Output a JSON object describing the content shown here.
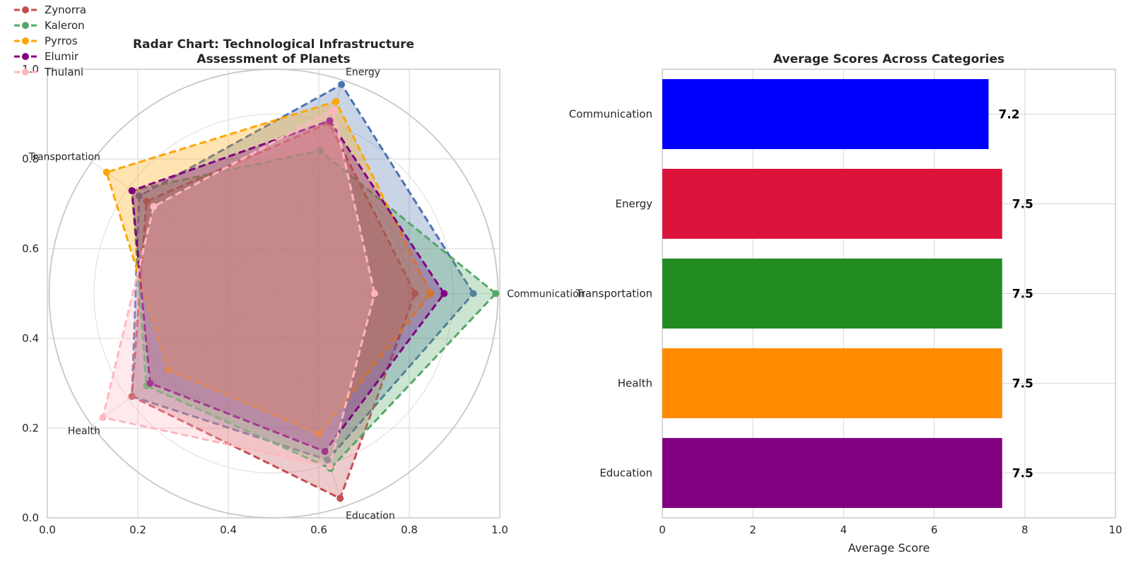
{
  "chart_data": [
    {
      "type": "radar",
      "title_lines": [
        "Radar Chart: Technological Infrastructure",
        "Assessment of Planets"
      ],
      "categories": [
        "Communication",
        "Energy",
        "Transportation",
        "Health",
        "Education"
      ],
      "rlim": [
        0,
        10
      ],
      "r_ticks": [
        2,
        4,
        6,
        8,
        10
      ],
      "frame_axes": {
        "xlim": [
          0,
          1
        ],
        "ylim": [
          0,
          1
        ],
        "x_ticks": [
          "0.0",
          "0.2",
          "0.4",
          "0.6",
          "0.8",
          "1.0"
        ],
        "y_ticks": [
          "0.0",
          "0.2",
          "0.4",
          "0.6",
          "0.8",
          "1.0"
        ]
      },
      "grid": true,
      "legend_position": "upper-left",
      "series": [
        {
          "name": "",
          "color": "#4c72b0",
          "values": [
            8.9,
            9.8,
            7.4,
            7.8,
            7.8
          ]
        },
        {
          "name": "Zynorra",
          "color": "#c44e52",
          "values": [
            6.3,
            8.0,
            7.0,
            7.8,
            9.6
          ]
        },
        {
          "name": "Kaleron",
          "color": "#55a868",
          "values": [
            9.9,
            6.7,
            7.8,
            7.0,
            8.2
          ]
        },
        {
          "name": "Pyrros",
          "color": "#ffa500",
          "values": [
            7.0,
            9.0,
            9.2,
            5.8,
            6.6
          ]
        },
        {
          "name": "Elumir",
          "color": "#800080",
          "values": [
            7.6,
            8.1,
            7.8,
            6.8,
            7.4
          ]
        },
        {
          "name": "Thulani",
          "color": "#ffb6c1",
          "values": [
            4.5,
            8.6,
            6.6,
            9.4,
            8.1
          ]
        }
      ]
    },
    {
      "type": "bar",
      "orientation": "horizontal",
      "title": "Average Scores Across Categories",
      "categories": [
        "Communication",
        "Energy",
        "Transportation",
        "Health",
        "Education"
      ],
      "values": [
        7.2,
        7.5,
        7.5,
        7.5,
        7.5
      ],
      "value_labels": [
        "7.2",
        "7.5",
        "7.5",
        "7.5",
        "7.5"
      ],
      "colors": [
        "#0000ff",
        "#dc143c",
        "#228b22",
        "#ff8c00",
        "#800080"
      ],
      "xlabel": "Average Score",
      "xlim": [
        0,
        10
      ],
      "x_ticks": [
        "0",
        "2",
        "4",
        "6",
        "8",
        "10"
      ],
      "grid": true
    }
  ]
}
